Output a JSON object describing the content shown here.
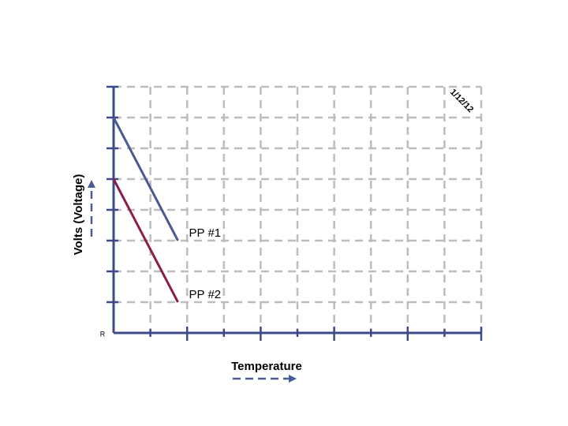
{
  "chart_data": {
    "type": "line",
    "x_label": "Temperature",
    "y_label": "Volts (Voltage)",
    "annotations": [
      "1/12/12",
      "R"
    ],
    "x": [
      0,
      1.75
    ],
    "series": [
      {
        "name": "PP #1",
        "color": "#4a5a93",
        "values": [
          7,
          3
        ]
      },
      {
        "name": "PP #2",
        "color": "#8c1c4c",
        "values": [
          5,
          1
        ]
      }
    ],
    "xlim": [
      0,
      10
    ],
    "xticks": [
      1,
      2,
      3,
      4,
      5,
      6,
      7,
      8,
      9,
      10
    ],
    "ylim": [
      0,
      8
    ],
    "yticks": [
      1,
      2,
      3,
      4,
      5,
      6,
      7,
      8
    ],
    "grid": true,
    "axis_color": "#3c4a8a"
  }
}
